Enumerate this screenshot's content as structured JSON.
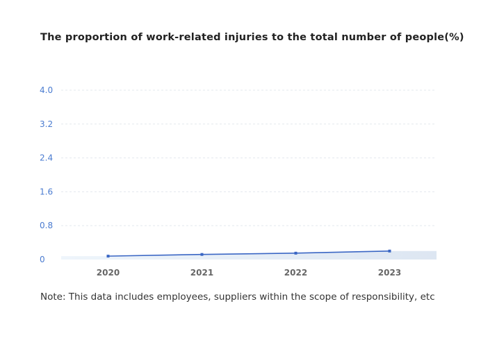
{
  "chart_data": {
    "type": "area",
    "title": "The proportion of work-related injuries to the total number of people(%)",
    "categories": [
      "2020",
      "2021",
      "2022",
      "2023"
    ],
    "series": [
      {
        "values": [
          0.08,
          0.12,
          0.15,
          0.2
        ]
      }
    ],
    "ylim": [
      0,
      4.0
    ],
    "yticks": [
      "0",
      "0.8",
      "1.6",
      "2.4",
      "3.2",
      "4.0"
    ],
    "grid": true,
    "colors": {
      "line": "#3a66c4",
      "marker": "#3a66c4",
      "ytick": "#4a7bd0",
      "xtick": "#666666",
      "grid": "#e3e8ee",
      "area_start": "#eef5fb",
      "area_end": "#dde6f2"
    }
  },
  "note": "Note: This data includes employees, suppliers within the scope of responsibility, etc"
}
